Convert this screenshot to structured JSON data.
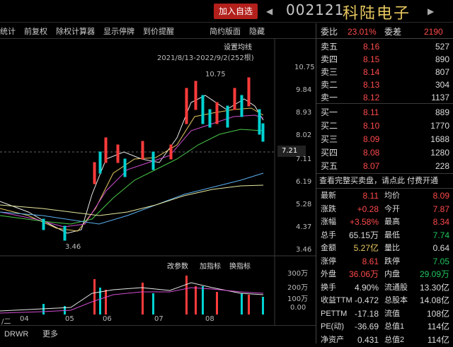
{
  "header": {
    "add_label": "加入自选",
    "code": "002121",
    "name": "科陆电子"
  },
  "toolbar": {
    "items": [
      "统计",
      "前复权",
      "除权计算器",
      "显示停牌",
      "到价提醒"
    ],
    "right1": "简约版面",
    "right2": "隐藏"
  },
  "chart": {
    "ma_label": "设置均线",
    "range": "2021/8/13-2022/9/2(252根)",
    "high_label": "10.75",
    "low_label": "3.46",
    "current_price": "7.21",
    "price_axis": [
      "10.75",
      "9.84",
      "8.93",
      "8.02",
      "7.11",
      "6.19",
      "5.28",
      "4.37",
      "3.46"
    ],
    "x_labels": [
      "/二",
      "04",
      "05",
      "06",
      "07",
      "08"
    ],
    "vol_tools": [
      "改参数",
      "加指标",
      "换指标"
    ],
    "vol_axis": [
      "300万",
      "200万",
      "100万",
      "0.00"
    ]
  },
  "tabs": [
    "DR",
    "WR",
    "更多"
  ],
  "orderbook": {
    "webi_label": "委比",
    "webi_val": "23.01%",
    "wecha_label": "委差",
    "wecha_val": "2190",
    "asks": [
      {
        "l": "卖五",
        "p": "8.16",
        "v": "527"
      },
      {
        "l": "卖四",
        "p": "8.15",
        "v": "890"
      },
      {
        "l": "卖三",
        "p": "8.14",
        "v": "807"
      },
      {
        "l": "卖二",
        "p": "8.13",
        "v": "304"
      },
      {
        "l": "卖一",
        "p": "8.12",
        "v": "1137"
      }
    ],
    "bids": [
      {
        "l": "买一",
        "p": "8.11",
        "v": "889"
      },
      {
        "l": "买二",
        "p": "8.10",
        "v": "1770"
      },
      {
        "l": "买三",
        "p": "8.09",
        "v": "1688"
      },
      {
        "l": "买四",
        "p": "8.08",
        "v": "1280"
      },
      {
        "l": "买五",
        "p": "8.07",
        "v": "228"
      }
    ],
    "promo": "查看完整买卖盘，请点此 付费开通",
    "stats": [
      {
        "a": "最新",
        "av": "8.11",
        "ac": "red",
        "b": "均价",
        "bv": "8.09",
        "bc": "red"
      },
      {
        "a": "涨跌",
        "av": "+0.28",
        "ac": "red",
        "b": "今开",
        "bv": "7.87",
        "bc": "red"
      },
      {
        "a": "涨幅",
        "av": "+3.58%",
        "ac": "red",
        "b": "最高",
        "bv": "8.34",
        "bc": "red"
      },
      {
        "a": "总手",
        "av": "65.15万",
        "ac": "white",
        "b": "最低",
        "bv": "7.74",
        "bc": "green"
      },
      {
        "a": "金额",
        "av": "5.27亿",
        "ac": "yel",
        "b": "量比",
        "bv": "0.64",
        "bc": "white"
      },
      {
        "a": "涨停",
        "av": "8.61",
        "ac": "red",
        "b": "跌停",
        "bv": "7.05",
        "bc": "green"
      },
      {
        "a": "外盘",
        "av": "36.06万",
        "ac": "red",
        "b": "内盘",
        "bv": "29.09万",
        "bc": "green"
      },
      {
        "a": "换手",
        "av": "4.90%",
        "ac": "white",
        "b": "流通股",
        "bv": "13.30亿",
        "bc": "white"
      },
      {
        "a": "收益TTM",
        "av": "-0.472",
        "ac": "white",
        "b": "总股本",
        "bv": "14.08亿",
        "bc": "white"
      },
      {
        "a": "PETTM",
        "av": "-17.18",
        "ac": "white",
        "b": "流值",
        "bv": "108亿",
        "bc": "white"
      },
      {
        "a": "PE(动)",
        "av": "-36.69",
        "ac": "white",
        "b": "总值1",
        "bv": "114亿",
        "bc": "white"
      },
      {
        "a": "净资产",
        "av": "0.431",
        "ac": "white",
        "b": "总值2",
        "bv": "114亿",
        "bc": "white"
      }
    ]
  }
}
